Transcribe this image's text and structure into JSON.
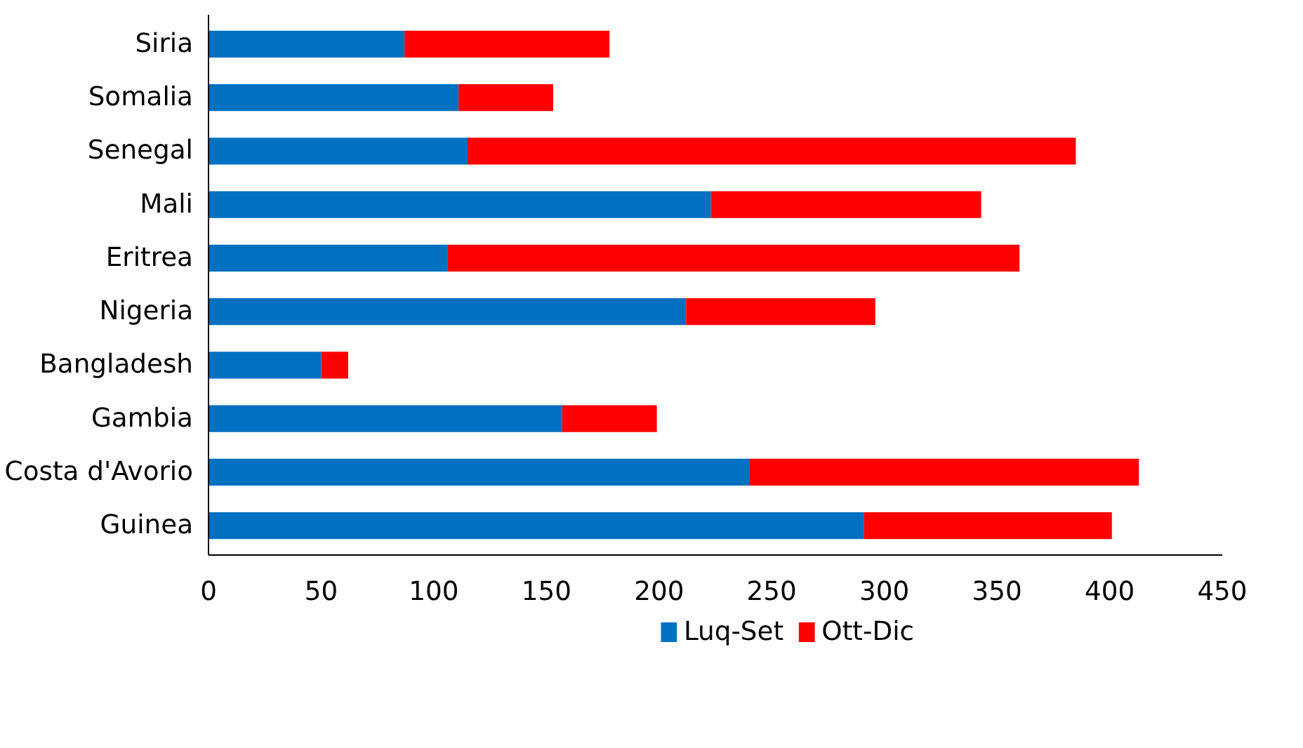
{
  "chart_data": {
    "type": "bar",
    "orientation": "horizontal",
    "stacked": true,
    "categories": [
      "Siria",
      "Somalia",
      "Senegal",
      "Mali",
      "Eritrea",
      "Nigeria",
      "Bangladesh",
      "Gambia",
      "Costa d'Avorio",
      "Guinea"
    ],
    "series": [
      {
        "name": "Luq-Set",
        "color": "#0070c0",
        "values": [
          87,
          111,
          115,
          223,
          106,
          212,
          50,
          157,
          240,
          291
        ]
      },
      {
        "name": "Ott-Dic",
        "color": "#ff0000",
        "values": [
          91,
          42,
          270,
          120,
          254,
          84,
          12,
          42,
          173,
          110
        ]
      }
    ],
    "xlim": [
      0,
      450
    ],
    "xticks": [
      0,
      50,
      100,
      150,
      200,
      250,
      300,
      350,
      400,
      450
    ],
    "grid": false,
    "legend": "bottom"
  }
}
